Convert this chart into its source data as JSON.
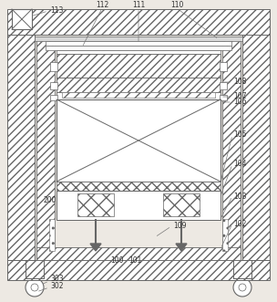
{
  "fig_width": 3.04,
  "fig_height": 3.31,
  "dpi": 100,
  "bg_color": "#ede9e3",
  "lc": "#666666",
  "lc2": "#888888"
}
